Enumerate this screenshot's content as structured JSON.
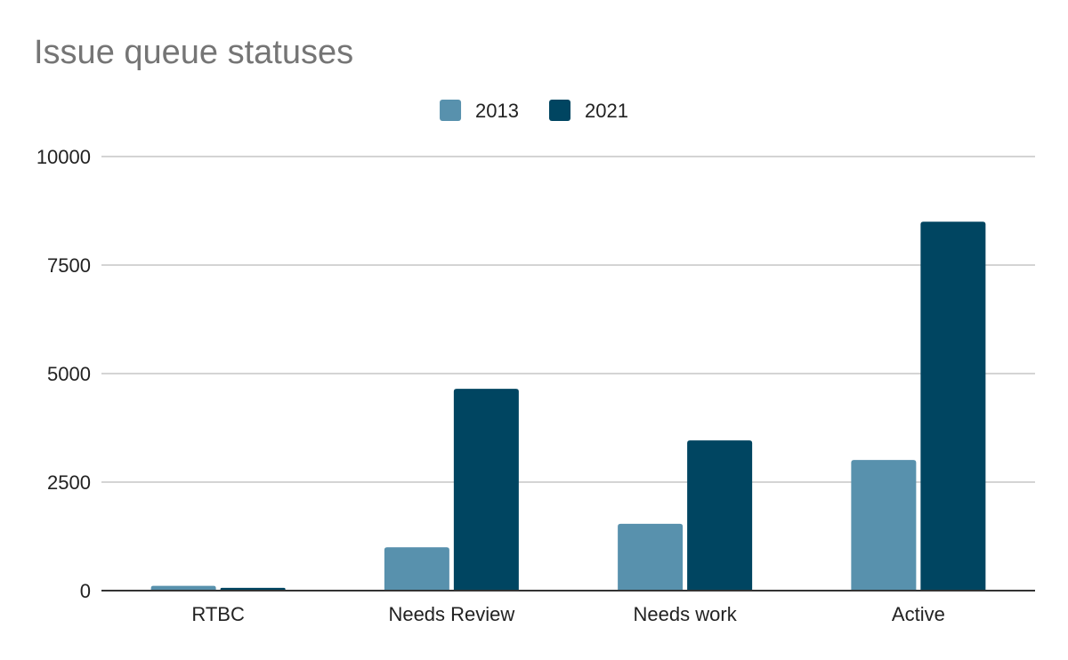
{
  "chart_data": {
    "type": "bar",
    "title": "Issue queue statuses",
    "categories": [
      "RTBC",
      "Needs Review",
      "Needs work",
      "Active"
    ],
    "series": [
      {
        "name": "2013",
        "color": "#5891AD",
        "values": [
          110,
          1000,
          1540,
          3010
        ]
      },
      {
        "name": "2021",
        "color": "#004561",
        "values": [
          65,
          4650,
          3460,
          8500
        ]
      }
    ],
    "xlabel": "",
    "ylabel": "",
    "ylim": [
      0,
      10000
    ],
    "yticks": [
      0,
      2500,
      5000,
      7500,
      10000
    ],
    "grid": true,
    "legend_position": "top"
  }
}
